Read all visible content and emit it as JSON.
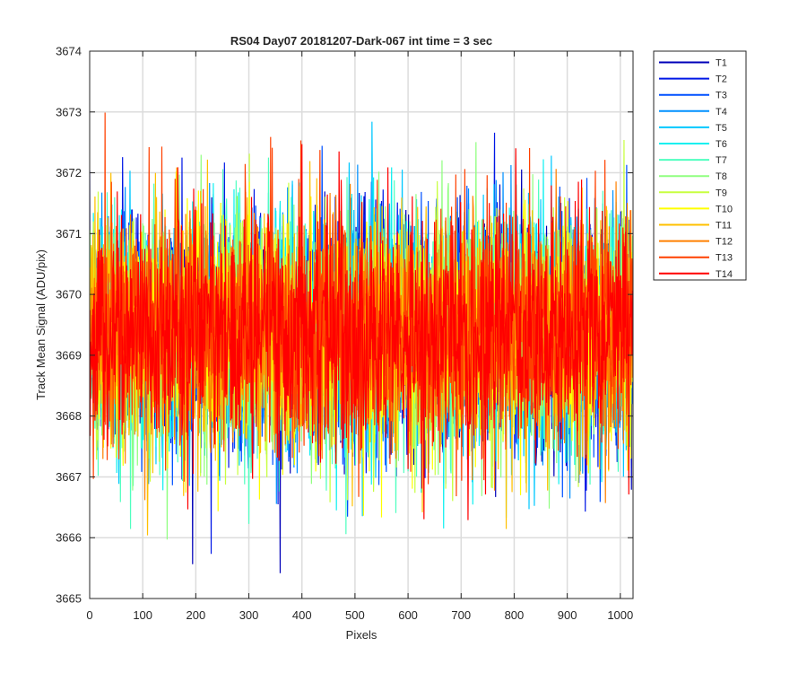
{
  "chart_data": {
    "type": "line",
    "title": "RS04 Day07 20181207-Dark-067 int time = 3 sec",
    "xlabel": "Pixels",
    "ylabel": "Track Mean Signal (ADU/pix)",
    "xlim": [
      0,
      1024
    ],
    "ylim": [
      3665,
      3674
    ],
    "xticks": [
      0,
      100,
      200,
      300,
      400,
      500,
      600,
      700,
      800,
      900,
      1000
    ],
    "yticks": [
      3665,
      3666,
      3667,
      3668,
      3669,
      3670,
      3671,
      3672,
      3673,
      3674
    ],
    "grid": true,
    "legend_position": "outside-top-right",
    "series": [
      {
        "name": "T1",
        "color": "#0000b8"
      },
      {
        "name": "T2",
        "color": "#0017e6"
      },
      {
        "name": "T3",
        "color": "#0050ff"
      },
      {
        "name": "T4",
        "color": "#0090ff"
      },
      {
        "name": "T5",
        "color": "#00c8ff"
      },
      {
        "name": "T6",
        "color": "#10f0f0"
      },
      {
        "name": "T7",
        "color": "#50ffc0"
      },
      {
        "name": "T8",
        "color": "#90ff80"
      },
      {
        "name": "T9",
        "color": "#c8ff40"
      },
      {
        "name": "T10",
        "color": "#ffff00"
      },
      {
        "name": "T11",
        "color": "#ffc000"
      },
      {
        "name": "T12",
        "color": "#ff8000"
      },
      {
        "name": "T13",
        "color": "#ff4000"
      },
      {
        "name": "T14",
        "color": "#ff0000"
      }
    ]
  }
}
